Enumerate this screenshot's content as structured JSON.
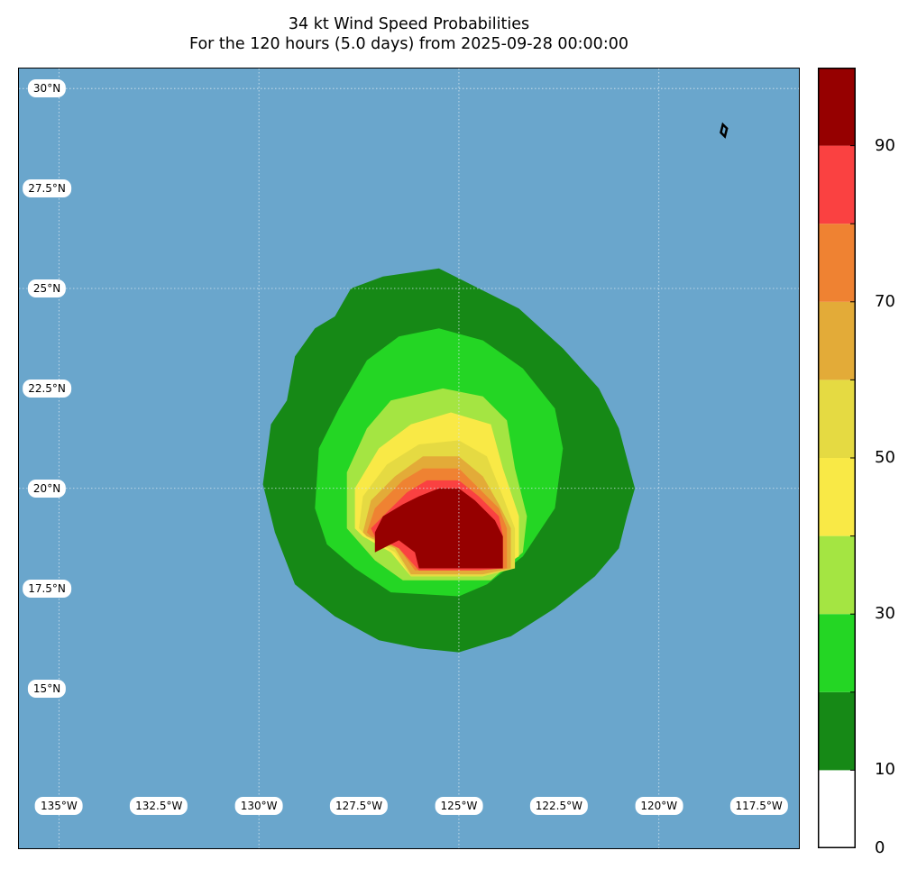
{
  "title": {
    "line1": "34 kt Wind Speed Probabilities",
    "line2": "For the 120 hours (5.0 days) from 2025-09-28 00:00:00"
  },
  "colors": {
    "ocean": "#6aa6cc",
    "gridline": "#d8e6f0",
    "label_bg": "#ffffff"
  },
  "map": {
    "lon_range": [
      -136,
      -116.5
    ],
    "lat_range": [
      11,
      30.5
    ],
    "lat_labels": [
      "30°N",
      "27.5°N",
      "25°N",
      "22.5°N",
      "20°N",
      "17.5°N",
      "15°N"
    ],
    "lat_values": [
      30,
      27.5,
      25,
      22.5,
      20,
      17.5,
      15
    ],
    "lon_labels": [
      "135°W",
      "132.5°W",
      "130°W",
      "127.5°W",
      "125°W",
      "122.5°W",
      "120°W",
      "117.5°W"
    ],
    "lon_values": [
      -135,
      -132.5,
      -130,
      -127.5,
      -125,
      -122.5,
      -120,
      -117.5
    ],
    "gridlines_lon": [
      -135,
      -130,
      -125,
      -120
    ],
    "gridlines_lat": [
      30,
      25,
      20
    ]
  },
  "colorbar": {
    "bins": [
      0,
      10,
      20,
      30,
      40,
      50,
      60,
      70,
      80,
      90,
      100
    ],
    "colors": [
      "#ffffff",
      "#168916",
      "#24d624",
      "#a4e542",
      "#f9e946",
      "#e5da42",
      "#e3ab38",
      "#ef8232",
      "#fa4141",
      "#960000",
      "#7f25dc"
    ],
    "tick_labels": [
      "0",
      "10",
      "30",
      "50",
      "70",
      "90"
    ],
    "tick_values": [
      0,
      10,
      30,
      50,
      70,
      90
    ]
  },
  "chart_data": {
    "type": "filled-contour",
    "title": "34 kt Wind Speed Probabilities",
    "subtitle": "For the 120 hours (5.0 days) from 2025-09-28 00:00:00",
    "units": "percent",
    "levels": [
      10,
      20,
      30,
      40,
      50,
      60,
      70,
      80,
      90
    ],
    "contours": [
      {
        "level": 10,
        "points": [
          [
            -129.9,
            20.1
          ],
          [
            -129.7,
            21.6
          ],
          [
            -129.3,
            22.2
          ],
          [
            -129.1,
            23.3
          ],
          [
            -128.6,
            24.0
          ],
          [
            -128.1,
            24.3
          ],
          [
            -127.7,
            25.0
          ],
          [
            -126.9,
            25.3
          ],
          [
            -125.5,
            25.5
          ],
          [
            -124.5,
            25.0
          ],
          [
            -123.5,
            24.5
          ],
          [
            -122.4,
            23.5
          ],
          [
            -121.5,
            22.5
          ],
          [
            -121.0,
            21.5
          ],
          [
            -120.6,
            20.0
          ],
          [
            -120.8,
            19.3
          ],
          [
            -121.0,
            18.5
          ],
          [
            -121.6,
            17.8
          ],
          [
            -122.6,
            17.0
          ],
          [
            -123.7,
            16.3
          ],
          [
            -125.0,
            15.9
          ],
          [
            -126.0,
            16.0
          ],
          [
            -127.0,
            16.2
          ],
          [
            -128.1,
            16.8
          ],
          [
            -129.1,
            17.6
          ],
          [
            -129.6,
            18.9
          ]
        ]
      },
      {
        "level": 20,
        "points": [
          [
            -128.6,
            19.5
          ],
          [
            -128.5,
            21.0
          ],
          [
            -128.0,
            22.0
          ],
          [
            -127.3,
            23.2
          ],
          [
            -126.5,
            23.8
          ],
          [
            -125.5,
            24.0
          ],
          [
            -124.4,
            23.7
          ],
          [
            -123.4,
            23.0
          ],
          [
            -122.6,
            22.0
          ],
          [
            -122.4,
            21.0
          ],
          [
            -122.6,
            19.5
          ],
          [
            -123.4,
            18.3
          ],
          [
            -124.3,
            17.6
          ],
          [
            -125.0,
            17.3
          ],
          [
            -126.7,
            17.4
          ],
          [
            -127.6,
            18.0
          ],
          [
            -128.3,
            18.6
          ]
        ]
      },
      {
        "level": 30,
        "points": [
          [
            -127.8,
            19.0
          ],
          [
            -127.8,
            20.4
          ],
          [
            -127.3,
            21.5
          ],
          [
            -126.7,
            22.2
          ],
          [
            -125.4,
            22.5
          ],
          [
            -124.4,
            22.3
          ],
          [
            -123.8,
            21.7
          ],
          [
            -123.6,
            20.5
          ],
          [
            -123.3,
            19.3
          ],
          [
            -123.4,
            18.4
          ],
          [
            -124.2,
            17.7
          ],
          [
            -126.4,
            17.7
          ],
          [
            -127.1,
            18.2
          ]
        ]
      },
      {
        "level": 40,
        "points": [
          [
            -127.6,
            19.0
          ],
          [
            -127.6,
            20.0
          ],
          [
            -127.0,
            21.0
          ],
          [
            -126.2,
            21.6
          ],
          [
            -125.2,
            21.9
          ],
          [
            -124.2,
            21.6
          ],
          [
            -123.9,
            20.5
          ],
          [
            -123.5,
            19.3
          ],
          [
            -123.5,
            18.3
          ],
          [
            -124.4,
            17.8
          ],
          [
            -126.2,
            17.8
          ],
          [
            -126.7,
            18.4
          ],
          [
            -127.4,
            18.8
          ]
        ]
      },
      {
        "level": 50,
        "points": [
          [
            -127.5,
            19.0
          ],
          [
            -127.4,
            19.8
          ],
          [
            -126.8,
            20.6
          ],
          [
            -126.0,
            21.1
          ],
          [
            -125.0,
            21.2
          ],
          [
            -124.3,
            20.8
          ],
          [
            -123.9,
            19.8
          ],
          [
            -123.6,
            19.0
          ],
          [
            -123.6,
            18.0
          ],
          [
            -124.4,
            17.8
          ],
          [
            -126.2,
            17.8
          ],
          [
            -126.6,
            18.4
          ],
          [
            -127.3,
            18.8
          ]
        ]
      },
      {
        "level": 60,
        "points": [
          [
            -127.4,
            18.9
          ],
          [
            -127.2,
            19.7
          ],
          [
            -126.6,
            20.3
          ],
          [
            -125.9,
            20.8
          ],
          [
            -125.0,
            20.8
          ],
          [
            -124.4,
            20.3
          ],
          [
            -124.0,
            19.6
          ],
          [
            -123.7,
            19.0
          ],
          [
            -123.7,
            18.0
          ],
          [
            -124.4,
            17.85
          ],
          [
            -126.2,
            17.85
          ],
          [
            -126.6,
            18.5
          ],
          [
            -127.3,
            18.8
          ]
        ]
      },
      {
        "level": 70,
        "points": [
          [
            -127.3,
            18.9
          ],
          [
            -127.1,
            19.5
          ],
          [
            -126.4,
            20.2
          ],
          [
            -125.9,
            20.5
          ],
          [
            -125.0,
            20.5
          ],
          [
            -124.5,
            20.0
          ],
          [
            -124.0,
            19.5
          ],
          [
            -123.8,
            19.0
          ],
          [
            -123.8,
            18.0
          ],
          [
            -124.5,
            17.95
          ],
          [
            -126.1,
            17.95
          ],
          [
            -126.5,
            18.5
          ],
          [
            -127.2,
            18.8
          ]
        ]
      },
      {
        "level": 80,
        "points": [
          [
            -127.2,
            19.0
          ],
          [
            -126.9,
            19.3
          ],
          [
            -126.3,
            19.9
          ],
          [
            -125.8,
            20.2
          ],
          [
            -125.0,
            20.2
          ],
          [
            -124.5,
            19.8
          ],
          [
            -124.0,
            19.3
          ],
          [
            -123.9,
            18.8
          ],
          [
            -123.9,
            18.0
          ],
          [
            -124.5,
            17.95
          ],
          [
            -126.0,
            17.95
          ],
          [
            -126.5,
            18.5
          ],
          [
            -127.1,
            18.8
          ]
        ]
      },
      {
        "level": 90,
        "points": [
          [
            -127.1,
            18.9
          ],
          [
            -126.9,
            19.3
          ],
          [
            -126.4,
            19.6
          ],
          [
            -126.0,
            19.8
          ],
          [
            -125.5,
            20.0
          ],
          [
            -125.0,
            20.0
          ],
          [
            -124.6,
            19.7
          ],
          [
            -124.1,
            19.2
          ],
          [
            -123.9,
            18.8
          ],
          [
            -123.9,
            18.0
          ],
          [
            -124.6,
            18.0
          ],
          [
            -126.0,
            18.0
          ],
          [
            -126.1,
            18.4
          ],
          [
            -126.5,
            18.7
          ],
          [
            -127.1,
            18.4
          ]
        ]
      }
    ],
    "islands": [
      [
        [
          -118.4,
          29.1
        ],
        [
          -118.3,
          29.0
        ],
        [
          -118.35,
          28.8
        ],
        [
          -118.45,
          28.9
        ]
      ]
    ]
  }
}
